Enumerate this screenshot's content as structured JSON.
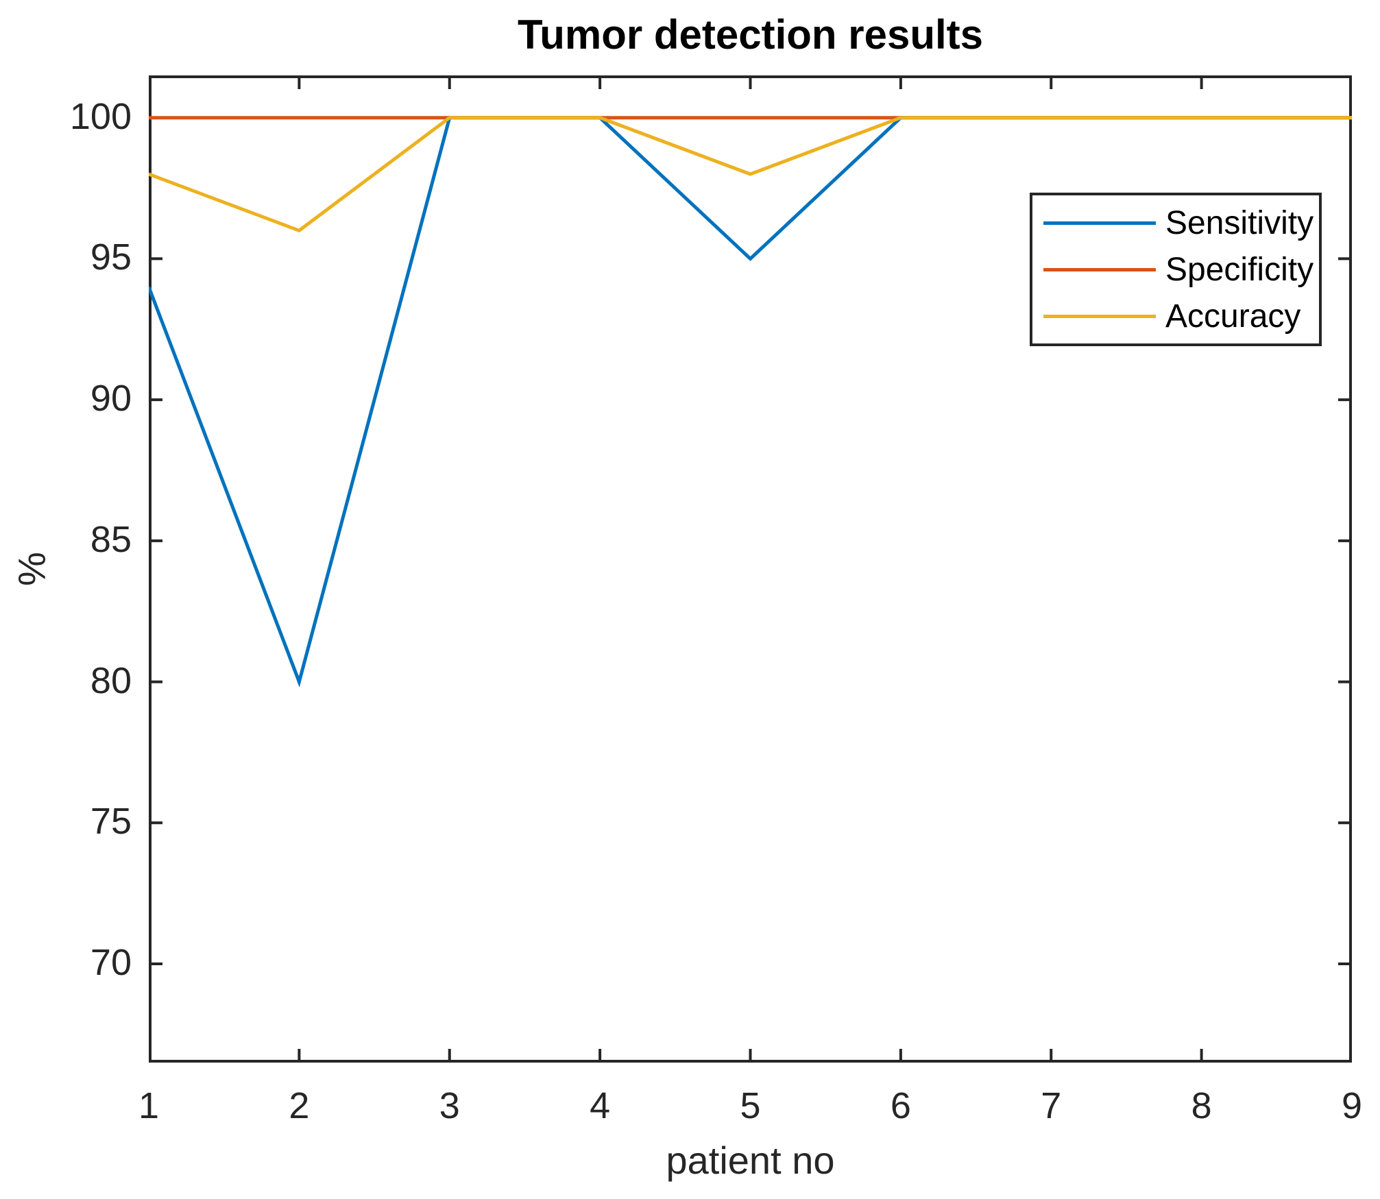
{
  "figure": {
    "title": "Tumor detection results",
    "xlabel": "patient no",
    "ylabel": "%"
  },
  "chart_data": {
    "type": "line",
    "title": "Tumor detection results",
    "xlabel": "patient no",
    "ylabel": "%",
    "x": [
      1,
      2,
      3,
      4,
      5,
      6,
      7,
      8,
      9
    ],
    "series": [
      {
        "name": "Sensitivity",
        "color": "#0072BD",
        "values": [
          94,
          80,
          100,
          100,
          95,
          100,
          100,
          100,
          100
        ]
      },
      {
        "name": "Specificity",
        "color": "#D95319",
        "values": [
          100,
          100,
          100,
          100,
          100,
          100,
          100,
          100,
          100
        ]
      },
      {
        "name": "Accuracy",
        "color": "#EDB120",
        "values": [
          98,
          96,
          100,
          100,
          98,
          100,
          100,
          100,
          100
        ]
      }
    ],
    "xlim": [
      1,
      9
    ],
    "ylim": [
      66.5,
      101.5
    ],
    "xticks": [
      1,
      2,
      3,
      4,
      5,
      6,
      7,
      8,
      9
    ],
    "yticks": [
      70,
      75,
      80,
      85,
      90,
      95,
      100
    ],
    "grid": false,
    "box": true,
    "tick_direction": "in",
    "tick_length": 18,
    "axis_color": "#262626",
    "line_width": 5,
    "legend_position": "upper right",
    "legend_entries": [
      "Sensitivity",
      "Specificity",
      "Accuracy"
    ]
  }
}
